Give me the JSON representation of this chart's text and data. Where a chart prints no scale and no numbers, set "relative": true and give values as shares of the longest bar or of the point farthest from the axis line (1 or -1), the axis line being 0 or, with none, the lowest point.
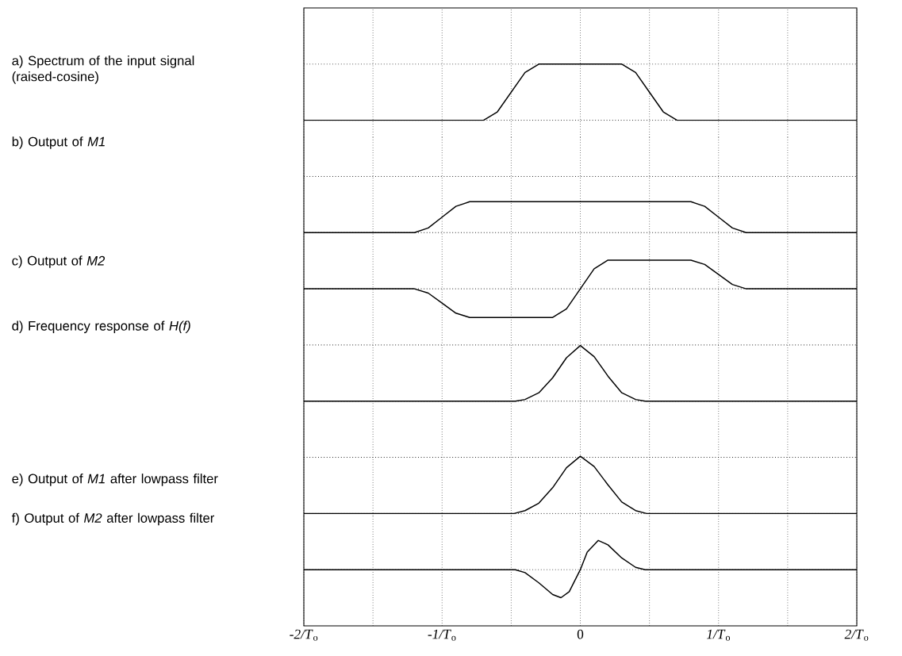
{
  "chart_data": [
    {
      "type": "line",
      "ylabel": "a) Spectrum of the input signal (raised-cosine)",
      "relative": true,
      "color": "#000000",
      "grid": true,
      "tick_labels": false,
      "xlim": [
        -2,
        2
      ],
      "x": [
        -2,
        -0.7,
        -0.6,
        -0.5,
        -0.4,
        -0.3,
        0.3,
        0.4,
        0.5,
        0.6,
        0.7,
        2
      ],
      "values": [
        0,
        0,
        0.15,
        0.5,
        0.85,
        1,
        1,
        0.85,
        0.5,
        0.15,
        0,
        0
      ]
    },
    {
      "type": "line",
      "ylabel": "b) Output of *M1*",
      "relative": true,
      "color": "#000000",
      "grid": true,
      "tick_labels": false,
      "xlim": [
        -2,
        2
      ],
      "x": [
        -2,
        -1.2,
        -1.1,
        -1.0,
        -0.9,
        -0.8,
        0.8,
        0.9,
        1.0,
        1.1,
        1.2,
        2
      ],
      "values": [
        0,
        0,
        0.15,
        0.5,
        0.85,
        1,
        1,
        0.85,
        0.5,
        0.15,
        0,
        0
      ]
    },
    {
      "type": "line",
      "ylabel": "c) Output of *M2*",
      "relative": true,
      "color": "#000000",
      "grid": true,
      "tick_labels": false,
      "xlim": [
        -2,
        2
      ],
      "x": [
        -2,
        -1.2,
        -1.1,
        -1.0,
        -0.9,
        -0.8,
        -0.2,
        -0.1,
        0,
        0.1,
        0.2,
        0.8,
        0.9,
        1.0,
        1.1,
        1.2,
        2
      ],
      "values": [
        0,
        0,
        -0.15,
        -0.5,
        -0.85,
        -1,
        -1,
        -0.7,
        0,
        0.7,
        1,
        1,
        0.85,
        0.5,
        0.15,
        0,
        0
      ]
    },
    {
      "type": "line",
      "ylabel": "d) Frequency response of *H(f)*",
      "relative": true,
      "color": "#000000",
      "grid": true,
      "tick_labels": false,
      "xlim": [
        -2,
        2
      ],
      "x": [
        -2,
        -0.47,
        -0.4,
        -0.3,
        -0.2,
        -0.1,
        0,
        0.1,
        0.2,
        0.3,
        0.4,
        0.47,
        2
      ],
      "values": [
        0,
        0,
        0.03,
        0.15,
        0.42,
        0.78,
        1,
        0.8,
        0.45,
        0.15,
        0.03,
        0,
        0
      ]
    },
    {
      "type": "line",
      "ylabel": "e) Output of *M1* after lowpass filter",
      "relative": true,
      "color": "#000000",
      "grid": true,
      "tick_labels": false,
      "xlim": [
        -2,
        2
      ],
      "x": [
        -2,
        -0.48,
        -0.4,
        -0.3,
        -0.2,
        -0.1,
        0,
        0.1,
        0.2,
        0.3,
        0.4,
        0.48,
        2
      ],
      "values": [
        0,
        0,
        0.05,
        0.18,
        0.45,
        0.8,
        1,
        0.82,
        0.5,
        0.2,
        0.05,
        0,
        0
      ]
    },
    {
      "type": "line",
      "ylabel": "f) Output of *M2* after lowpass filter",
      "relative": true,
      "color": "#000000",
      "grid": true,
      "tick_labels": "x",
      "xlim": [
        -2,
        2
      ],
      "xticks": [
        {
          "value": -2,
          "label": "*-2/T*$_{o}$"
        },
        {
          "value": -1.5,
          "label": null
        },
        {
          "value": -1,
          "label": "*-1/T*$_{o}$"
        },
        {
          "value": -0.5,
          "label": null
        },
        0,
        {
          "value": 0.5,
          "label": null
        },
        {
          "value": 1,
          "label": "*1/T*$_{o}$"
        },
        {
          "value": 1.5,
          "label": null
        },
        {
          "value": 2,
          "label": "*2/T*$_{o}$"
        }
      ],
      "x": [
        -2,
        -0.47,
        -0.4,
        -0.3,
        -0.2,
        -0.14,
        -0.08,
        0,
        0.05,
        0.13,
        0.2,
        0.3,
        0.4,
        0.47,
        2
      ],
      "values": [
        0,
        0,
        -0.1,
        -0.45,
        -0.85,
        -0.96,
        -0.75,
        0,
        0.6,
        1,
        0.85,
        0.4,
        0.08,
        0,
        0
      ]
    }
  ]
}
